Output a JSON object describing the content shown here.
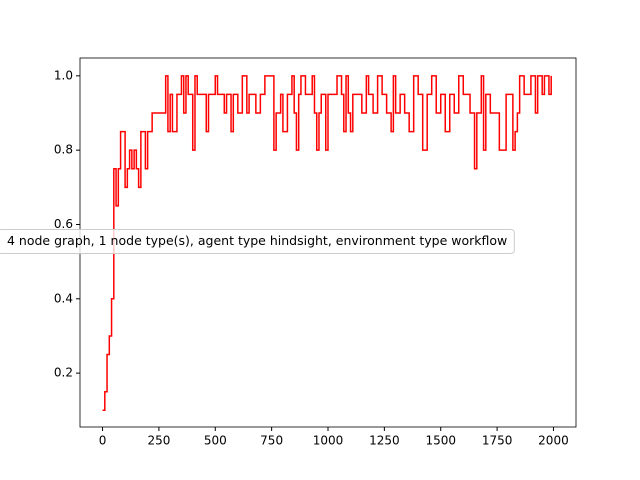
{
  "chart_data": {
    "type": "line",
    "drawstyle": "steps-post",
    "x": [
      0,
      10,
      20,
      30,
      40,
      50,
      60,
      70,
      80,
      100,
      110,
      120,
      130,
      140,
      150,
      160,
      170,
      190,
      200,
      220,
      280,
      290,
      300,
      310,
      330,
      350,
      360,
      370,
      380,
      400,
      410,
      420,
      460,
      470,
      500,
      510,
      540,
      550,
      570,
      580,
      600,
      620,
      640,
      650,
      680,
      700,
      720,
      760,
      770,
      790,
      800,
      820,
      840,
      850,
      860,
      870,
      880,
      900,
      930,
      940,
      950,
      960,
      970,
      990,
      1000,
      1040,
      1060,
      1070,
      1080,
      1090,
      1100,
      1110,
      1150,
      1170,
      1180,
      1200,
      1220,
      1240,
      1260,
      1280,
      1290,
      1300,
      1320,
      1340,
      1360,
      1380,
      1400,
      1420,
      1440,
      1460,
      1480,
      1500,
      1520,
      1540,
      1560,
      1580,
      1600,
      1630,
      1650,
      1660,
      1680,
      1690,
      1700,
      1720,
      1760,
      1790,
      1820,
      1830,
      1840,
      1850,
      1870,
      1900,
      1920,
      1930,
      1950,
      1960,
      1980,
      1990
    ],
    "series": [
      {
        "name": "4 node graph, 1 node type(s), agent type hindsight, environment type workflow",
        "color": "#ff0000",
        "values": [
          0.1,
          0.15,
          0.25,
          0.3,
          0.4,
          0.75,
          0.65,
          0.75,
          0.85,
          0.7,
          0.75,
          0.8,
          0.75,
          0.8,
          0.75,
          0.7,
          0.85,
          0.75,
          0.85,
          0.9,
          1.0,
          0.85,
          0.95,
          0.85,
          0.95,
          1.0,
          0.9,
          1.0,
          0.95,
          0.8,
          1.0,
          0.95,
          0.85,
          0.95,
          1.0,
          0.95,
          0.9,
          0.95,
          0.85,
          0.95,
          0.9,
          1.0,
          0.9,
          0.95,
          0.9,
          0.95,
          1.0,
          0.8,
          0.9,
          0.95,
          0.85,
          0.95,
          1.0,
          0.9,
          0.8,
          0.95,
          1.0,
          0.95,
          1.0,
          0.9,
          0.8,
          0.9,
          0.95,
          0.8,
          0.95,
          1.0,
          0.95,
          0.85,
          1.0,
          0.9,
          0.85,
          0.95,
          0.9,
          1.0,
          0.95,
          0.9,
          1.0,
          0.95,
          0.9,
          0.85,
          1.0,
          0.9,
          0.95,
          0.9,
          0.85,
          1.0,
          0.95,
          0.8,
          0.95,
          1.0,
          0.9,
          0.95,
          0.85,
          0.95,
          0.9,
          1.0,
          0.95,
          0.9,
          0.75,
          0.9,
          1.0,
          0.8,
          0.95,
          0.9,
          0.8,
          0.95,
          0.8,
          0.85,
          0.9,
          1.0,
          0.95,
          1.0,
          0.9,
          1.0,
          0.95,
          1.0,
          0.95,
          1.0
        ]
      }
    ],
    "xlim": [
      -100,
      2100
    ],
    "ylim": [
      0.055,
      1.048
    ],
    "xticks": [
      0,
      250,
      500,
      750,
      1000,
      1250,
      1500,
      1750,
      2000
    ],
    "yticks": [
      0.2,
      0.4,
      0.6,
      0.8,
      {
        "value": 1,
        "label": "1.0"
      }
    ],
    "legend": "center left"
  }
}
